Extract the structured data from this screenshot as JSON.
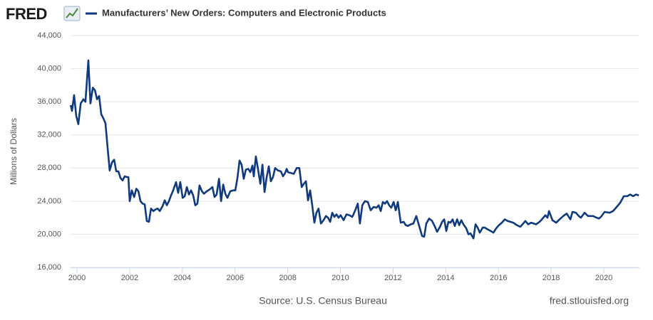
{
  "logo": "FRED",
  "chart_data": {
    "type": "line",
    "ylabel": "Millions of Dollars",
    "source": "Source: U.S. Census Bureau",
    "credit": "fred.stlouisfed.org",
    "xlim": [
      1999.75,
      2021.35
    ],
    "ylim": [
      16000,
      44000
    ],
    "xticks": [
      2000,
      2002,
      2004,
      2006,
      2008,
      2010,
      2012,
      2014,
      2016,
      2018,
      2020
    ],
    "yticks": [
      {
        "value": 16000,
        "label": "16,000"
      },
      {
        "value": 20000,
        "label": "20,000"
      },
      {
        "value": 24000,
        "label": "24,000"
      },
      {
        "value": 28000,
        "label": "28,000"
      },
      {
        "value": 32000,
        "label": "32,000"
      },
      {
        "value": 36000,
        "label": "36,000"
      },
      {
        "value": 40000,
        "label": "40,000"
      },
      {
        "value": 44000,
        "label": "44,000"
      }
    ],
    "grid": true,
    "x": [
      1999.76,
      1999.81,
      1999.89,
      1999.97,
      2000.05,
      2000.14,
      2000.24,
      2000.32,
      2000.43,
      2000.51,
      2000.6,
      2000.68,
      2000.76,
      2000.84,
      2000.92,
      2001.0,
      2001.08,
      2001.16,
      2001.24,
      2001.33,
      2001.41,
      2001.49,
      2001.57,
      2001.65,
      2001.73,
      2001.81,
      2001.89,
      2001.95,
      2002.0,
      2002.08,
      2002.17,
      2002.25,
      2002.33,
      2002.41,
      2002.49,
      2002.57,
      2002.65,
      2002.73,
      2002.81,
      2002.9,
      2002.98,
      2003.06,
      2003.14,
      2003.25,
      2003.33,
      2003.41,
      2003.49,
      2003.57,
      2003.65,
      2003.76,
      2003.84,
      2003.92,
      2004.01,
      2004.09,
      2004.17,
      2004.25,
      2004.33,
      2004.41,
      2004.49,
      2004.57,
      2004.65,
      2004.74,
      2004.82,
      2004.93,
      2005.03,
      2005.14,
      2005.22,
      2005.3,
      2005.39,
      2005.47,
      2005.55,
      2005.63,
      2005.71,
      2005.82,
      2005.93,
      2006.01,
      2006.09,
      2006.17,
      2006.25,
      2006.33,
      2006.41,
      2006.5,
      2006.58,
      2006.66,
      2006.71,
      2006.79,
      2006.87,
      2006.96,
      2007.04,
      2007.12,
      2007.2,
      2007.28,
      2007.36,
      2007.44,
      2007.52,
      2007.63,
      2007.74,
      2007.82,
      2007.9,
      2007.96,
      2008.01,
      2008.12,
      2008.23,
      2008.34,
      2008.44,
      2008.53,
      2008.61,
      2008.69,
      2008.77,
      2008.85,
      2008.93,
      2009.01,
      2009.09,
      2009.17,
      2009.26,
      2009.36,
      2009.45,
      2009.53,
      2009.61,
      2009.69,
      2009.77,
      2009.85,
      2009.93,
      2010.01,
      2010.12,
      2010.23,
      2010.34,
      2010.45,
      2010.55,
      2010.66,
      2010.74,
      2010.83,
      2010.93,
      2011.04,
      2011.15,
      2011.26,
      2011.37,
      2011.45,
      2011.53,
      2011.61,
      2011.69,
      2011.77,
      2011.85,
      2011.93,
      2012.02,
      2012.1,
      2012.18,
      2012.29,
      2012.4,
      2012.48,
      2012.56,
      2012.67,
      2012.77,
      2012.88,
      2012.99,
      2013.1,
      2013.18,
      2013.26,
      2013.37,
      2013.48,
      2013.59,
      2013.67,
      2013.78,
      2013.86,
      2013.94,
      2014.02,
      2014.1,
      2014.18,
      2014.26,
      2014.34,
      2014.43,
      2014.51,
      2014.59,
      2014.67,
      2014.78,
      2014.86,
      2014.94,
      2015.05,
      2015.13,
      2015.21,
      2015.29,
      2015.4,
      2015.48,
      2015.59,
      2015.7,
      2015.81,
      2015.91,
      2016.02,
      2016.13,
      2016.24,
      2016.35,
      2016.46,
      2016.56,
      2016.7,
      2016.83,
      2017.02,
      2017.13,
      2017.24,
      2017.43,
      2017.56,
      2017.65,
      2017.78,
      2017.86,
      2017.92,
      2018.05,
      2018.19,
      2018.32,
      2018.46,
      2018.59,
      2018.73,
      2018.81,
      2018.94,
      2019.05,
      2019.13,
      2019.27,
      2019.4,
      2019.59,
      2019.73,
      2019.81,
      2019.89,
      2020.03,
      2020.22,
      2020.35,
      2020.49,
      2020.62,
      2020.76,
      2020.89,
      2021.0,
      2021.11,
      2021.22,
      2021.33
    ],
    "series": [
      {
        "name": "Manufacturers’ New Orders: Computers and Electronic Products",
        "color": "#0f3a7d",
        "values": [
          35600,
          34900,
          36800,
          34300,
          33300,
          35800,
          36300,
          36000,
          41000,
          35800,
          37700,
          37400,
          36300,
          36700,
          34500,
          34000,
          33400,
          30500,
          27700,
          28700,
          29000,
          27600,
          27600,
          26800,
          26500,
          27000,
          26900,
          26900,
          24000,
          25300,
          24500,
          25500,
          25200,
          24000,
          23700,
          23600,
          21600,
          21500,
          23100,
          22800,
          23000,
          23100,
          22800,
          23400,
          24100,
          23500,
          24000,
          24700,
          25300,
          26300,
          25000,
          26300,
          24400,
          24600,
          25700,
          24800,
          25300,
          24700,
          23500,
          23700,
          25900,
          25200,
          24900,
          25200,
          25400,
          25700,
          24500,
          24800,
          26700,
          24000,
          26000,
          24900,
          24400,
          25200,
          25300,
          25300,
          26800,
          28900,
          28400,
          26700,
          27800,
          27900,
          27500,
          28300,
          27000,
          29400,
          27900,
          26100,
          28400,
          25100,
          26900,
          28200,
          26400,
          26900,
          28000,
          27700,
          27600,
          27000,
          27400,
          27900,
          27500,
          27400,
          27300,
          28000,
          28000,
          25700,
          26100,
          26400,
          24100,
          25300,
          23500,
          21400,
          22600,
          23100,
          21300,
          21700,
          22200,
          22000,
          21500,
          22600,
          22100,
          22400,
          22000,
          22300,
          21700,
          22400,
          22300,
          22100,
          22800,
          23700,
          21300,
          23500,
          24000,
          23900,
          22900,
          23300,
          23200,
          23500,
          22800,
          23900,
          23700,
          24000,
          23500,
          23200,
          23900,
          22900,
          23900,
          21400,
          21500,
          21100,
          21000,
          21200,
          21300,
          22200,
          21000,
          19800,
          19700,
          21300,
          21900,
          21600,
          20900,
          20300,
          20900,
          21500,
          21800,
          20400,
          21500,
          21400,
          21800,
          21000,
          21800,
          21100,
          21700,
          21200,
          20700,
          20000,
          20100,
          19500,
          21200,
          20800,
          20200,
          20800,
          20800,
          20600,
          20400,
          20200,
          20700,
          21100,
          21400,
          21800,
          21600,
          21500,
          21400,
          21100,
          20900,
          21600,
          21200,
          21400,
          21200,
          21500,
          21800,
          22300,
          22000,
          22800,
          21700,
          21400,
          21800,
          22200,
          22500,
          21800,
          22700,
          22600,
          22200,
          22000,
          22600,
          22200,
          22200,
          22000,
          21900,
          22100,
          22700,
          22600,
          22800,
          23300,
          23800,
          24600,
          24600,
          24800,
          24600,
          24800,
          24700
        ]
      }
    ]
  }
}
